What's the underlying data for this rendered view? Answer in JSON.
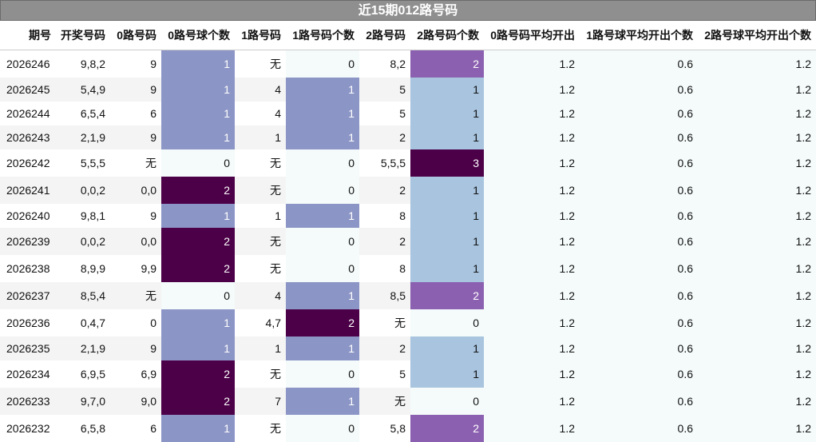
{
  "chart_data": {
    "type": "table",
    "title": "近15期012路号码",
    "columns": [
      "期号",
      "开奖号码",
      "0路号码",
      "0路号球个数",
      "1路号码",
      "1路号码个数",
      "2路号码",
      "2路号码个数",
      "0路号码平均开出",
      "1路号球平均开出个数",
      "2路号球平均开出个数"
    ],
    "rows": [
      [
        "2026246",
        "9,8,2",
        "9",
        "1",
        "无",
        "0",
        "8,2",
        "2",
        "1.2",
        "0.6",
        "1.2"
      ],
      [
        "2026245",
        "5,4,9",
        "9",
        "1",
        "4",
        "1",
        "5",
        "1",
        "1.2",
        "0.6",
        "1.2"
      ],
      [
        "2026244",
        "6,5,4",
        "6",
        "1",
        "4",
        "1",
        "5",
        "1",
        "1.2",
        "0.6",
        "1.2"
      ],
      [
        "2026243",
        "2,1,9",
        "9",
        "1",
        "1",
        "1",
        "2",
        "1",
        "1.2",
        "0.6",
        "1.2"
      ],
      [
        "2026242",
        "5,5,5",
        "无",
        "0",
        "无",
        "0",
        "5,5,5",
        "3",
        "1.2",
        "0.6",
        "1.2"
      ],
      [
        "2026241",
        "0,0,2",
        "0,0",
        "2",
        "无",
        "0",
        "2",
        "1",
        "1.2",
        "0.6",
        "1.2"
      ],
      [
        "2026240",
        "9,8,1",
        "9",
        "1",
        "1",
        "1",
        "8",
        "1",
        "1.2",
        "0.6",
        "1.2"
      ],
      [
        "2026239",
        "0,0,2",
        "0,0",
        "2",
        "无",
        "0",
        "2",
        "1",
        "1.2",
        "0.6",
        "1.2"
      ],
      [
        "2026238",
        "8,9,9",
        "9,9",
        "2",
        "无",
        "0",
        "8",
        "1",
        "1.2",
        "0.6",
        "1.2"
      ],
      [
        "2026237",
        "8,5,4",
        "无",
        "0",
        "4",
        "1",
        "8,5",
        "2",
        "1.2",
        "0.6",
        "1.2"
      ],
      [
        "2026236",
        "0,4,7",
        "0",
        "1",
        "4,7",
        "2",
        "无",
        "0",
        "1.2",
        "0.6",
        "1.2"
      ],
      [
        "2026235",
        "2,1,9",
        "9",
        "1",
        "1",
        "1",
        "2",
        "1",
        "1.2",
        "0.6",
        "1.2"
      ],
      [
        "2026234",
        "6,9,5",
        "6,9",
        "2",
        "无",
        "0",
        "5",
        "1",
        "1.2",
        "0.6",
        "1.2"
      ],
      [
        "2026233",
        "9,7,0",
        "9,0",
        "2",
        "7",
        "1",
        "无",
        "0",
        "1.2",
        "0.6",
        "1.2"
      ],
      [
        "2026232",
        "6,5,8",
        "6",
        "1",
        "无",
        "0",
        "5,8",
        "2",
        "1.2",
        "0.6",
        "1.2"
      ]
    ],
    "colors": {
      "header_bg": "#8f8f8f",
      "zero": "#f4fbfa",
      "count1_col0_col1": "#8c96c6",
      "count1_col2": "#a8c4df",
      "count2_col0_col1": "#4c0048",
      "count2_col2": "#8c60b0",
      "count3": "#4c0048"
    }
  }
}
